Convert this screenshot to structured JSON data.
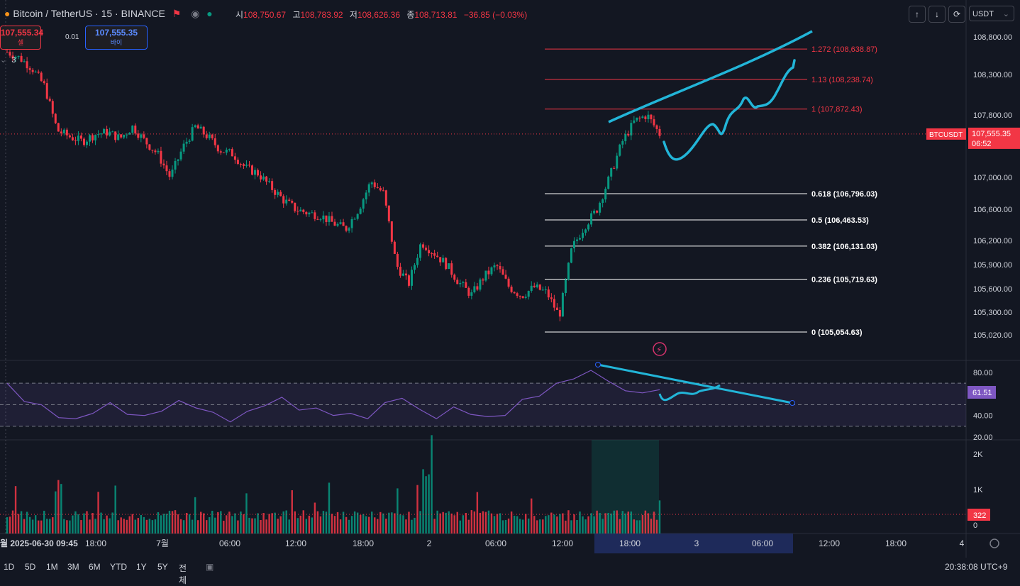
{
  "header": {
    "symbol": "Bitcoin / TetherUS · 15 · BINANCE",
    "ohlc": [
      {
        "label": "시",
        "value": "108,750.67"
      },
      {
        "label": "고",
        "value": "108,783.92"
      },
      {
        "label": "저",
        "value": "108,626.36"
      },
      {
        "label": "종",
        "value": "108,713.81"
      }
    ],
    "change": "−36.85 (−0.03%)",
    "sell_price": "107,555.34",
    "sell_label": "셀",
    "buy_price": "107,555.35",
    "buy_label": "바이",
    "spread": "0.01",
    "legend_count": "3",
    "currency": "USDT"
  },
  "toolbar": {
    "up_icon": "arrow-up-icon",
    "down_icon": "arrow-down-icon",
    "compare_icon": "compare-icon"
  },
  "bottom_bar": {
    "ranges": [
      "1D",
      "5D",
      "1M",
      "3M",
      "6M",
      "YTD",
      "1Y",
      "5Y",
      "전체"
    ],
    "clock": "20:38:08 UTC+9"
  },
  "chart_data": [
    {
      "type": "candlestick",
      "symbol_label": "BTCUSDT",
      "last_price": "107,555.35",
      "countdown": "06:52",
      "y_ticks": [
        "108,800.00",
        "108,300.00",
        "107,800.00",
        "107,000.00",
        "106,600.00",
        "106,200.00",
        "105,900.00",
        "105,600.00",
        "105,300.00",
        "105,020.00"
      ],
      "y_tick_values": [
        108800,
        108300,
        107800,
        107000,
        106600,
        106200,
        105900,
        105600,
        105300,
        105020
      ],
      "x_ticks": [
        "월 2025-06-30  09:45",
        "18:00",
        "7월",
        "06:00",
        "12:00",
        "18:00",
        "2",
        "06:00",
        "12:00",
        "18:00",
        "3",
        "06:00",
        "12:00",
        "18:00",
        "4"
      ],
      "fibonacci": [
        {
          "label": "1.272 (108,638.87)",
          "value": 108638.87,
          "color": "#f23645"
        },
        {
          "label": "1.13 (108,238.74)",
          "value": 108238.74,
          "color": "#f23645"
        },
        {
          "label": "1 (107,872.43)",
          "value": 107872.43,
          "color": "#f23645"
        },
        {
          "label": "0.618 (106,796.03)",
          "value": 106796.03,
          "color": "#ffffff"
        },
        {
          "label": "0.5 (106,463.53)",
          "value": 106463.53,
          "color": "#ffffff"
        },
        {
          "label": "0.382 (106,131.03)",
          "value": 106131.03,
          "color": "#ffffff"
        },
        {
          "label": "0.236 (105,719.63)",
          "value": 105719.63,
          "color": "#ffffff"
        },
        {
          "label": "0 (105,054.63)",
          "value": 105054.63,
          "color": "#ffffff"
        }
      ],
      "price_path": [
        108600,
        108520,
        108380,
        108150,
        107600,
        107520,
        107460,
        107550,
        107580,
        107500,
        107650,
        107460,
        107300,
        107000,
        107380,
        107650,
        107520,
        107350,
        107300,
        107120,
        107050,
        106880,
        106720,
        106600,
        106550,
        106520,
        106420,
        106350,
        106600,
        106950,
        106800,
        105900,
        105660,
        106180,
        106050,
        105900,
        105680,
        105520,
        105750,
        105890,
        105620,
        105510,
        105620,
        105550,
        105250,
        106100,
        106380,
        106600,
        107000,
        107450,
        107720,
        107800,
        107555
      ],
      "colors": {
        "up": "#089981",
        "down": "#f23645",
        "annotation": "#22b5d8"
      }
    },
    {
      "type": "line",
      "name": "RSI",
      "y_ticks": [
        "80.00",
        "40.00",
        "20.00"
      ],
      "current_value": "61.51",
      "values": [
        68,
        55,
        48,
        40,
        35,
        44,
        50,
        43,
        38,
        46,
        52,
        49,
        41,
        36,
        42,
        51,
        55,
        47,
        45,
        42,
        40,
        39,
        50,
        58,
        44,
        39,
        46,
        43,
        37,
        42,
        53,
        60,
        68,
        76,
        80,
        74,
        61,
        63,
        62
      ]
    },
    {
      "type": "bar",
      "name": "Volume",
      "y_ticks": [
        "2K",
        "1K",
        "0"
      ],
      "current_value": "322"
    }
  ]
}
